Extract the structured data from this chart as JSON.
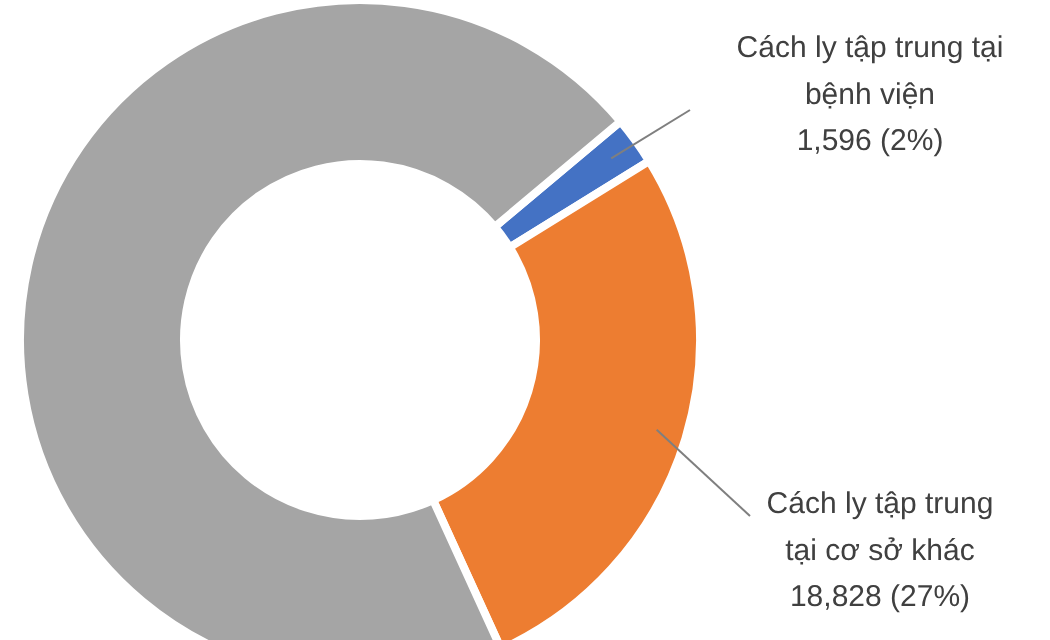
{
  "chart_data": {
    "type": "donut",
    "categories": [
      "Cách ly tập trung tại bệnh viện",
      "Cách ly tập trung tại cơ sở khác",
      null
    ],
    "values": [
      1596,
      18828,
      49300
    ],
    "colors": [
      "#4472c4",
      "#ed7d31",
      "#a5a5a5"
    ],
    "value_labels": [
      "1,596 (2%)",
      "18,828 (27%)",
      null
    ],
    "legend": false
  }
}
